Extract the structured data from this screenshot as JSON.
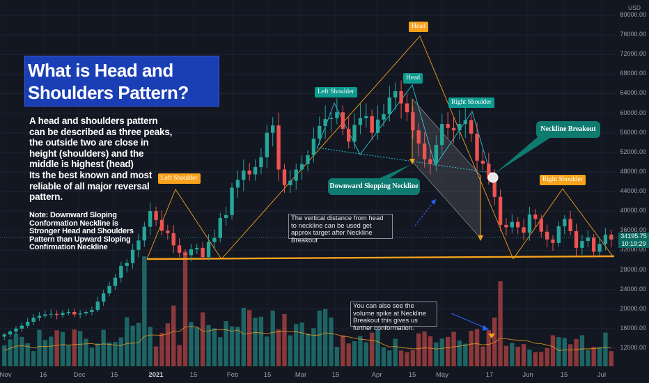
{
  "title": "What is Head and Shoulders Pattern?",
  "description": "A head and shoulders pattern can be described as three peaks, the outside two are close in height (shoulders)  and the middle is highest (head)\nIts the best known and most reliable of all major reversal pattern.",
  "note": "Note: Downward Sloping Conformation Neckline is Stronger Head and Shoulders Pattern than Upward Sloping Confirmation Neckline",
  "callouts": {
    "target": "The vertical distance from head to neckline can be used get approx target after Neckline Breakout",
    "volume": "You can also see the volume spike at Neckline Breakout this gives us further conformation."
  },
  "tags": {
    "head_top": "Head",
    "left_shoulder_small": "Left Shoulder",
    "head_small": "Head",
    "right_shoulder_small": "Right Shoulder",
    "left_shoulder_big": "Left Shoulder",
    "right_shoulder_big": "Right Shoulder",
    "neckline_breakout": "Neckline Breakout",
    "downward_neckline": "Downward Slopping Neckline"
  },
  "price_axis": {
    "currency": "USD",
    "ticks": [
      "80000.00",
      "76000.00",
      "72000.00",
      "68000.00",
      "64000.00",
      "60000.00",
      "56000.00",
      "52000.00",
      "48000.00",
      "44000.00",
      "40000.00",
      "36000.00",
      "32000.00",
      "28000.00",
      "24000.00",
      "20000.00",
      "16000.00",
      "12000.00"
    ],
    "last_price": "34195.75",
    "countdown": "10:19:29"
  },
  "colors": {
    "up": "#26a69a",
    "down": "#ef5350",
    "pattern": "#f7a21b",
    "neckline_small": "#26c6da",
    "background": "#131722"
  },
  "chart_data": {
    "type": "candlestick",
    "symbol_currency": "USD",
    "x_ticks": [
      "Nov",
      "16",
      "Dec",
      "15",
      "2021",
      "15",
      "Feb",
      "15",
      "Mar",
      "15",
      "Apr",
      "15",
      "May",
      "17",
      "Jun",
      "15",
      "Jul"
    ],
    "ylim": [
      8000,
      80000
    ],
    "close_series": [
      14800,
      15400,
      16000,
      16600,
      17400,
      18200,
      18600,
      18900,
      19000,
      18800,
      19200,
      19400,
      18900,
      19100,
      19400,
      19800,
      21500,
      23200,
      24700,
      26400,
      28800,
      29400,
      32100,
      34000,
      36800,
      40000,
      38200,
      36000,
      35500,
      33000,
      31500,
      31000,
      32200,
      32500,
      30600,
      33700,
      34500,
      38600,
      39200,
      44800,
      46400,
      48300,
      47500,
      49000,
      51000,
      56000,
      57500,
      48500,
      45300,
      46200,
      48500,
      49600,
      51400,
      54800,
      57400,
      58800,
      59000,
      60200,
      56800,
      54200,
      57600,
      59000,
      59400,
      56000,
      58700,
      59800,
      63200,
      64500,
      62000,
      60200,
      56500,
      53800,
      50600,
      49700,
      53500,
      57800,
      57000,
      56500,
      57800,
      58600,
      55800,
      50300,
      49700,
      46500,
      42900,
      37200,
      36700,
      37800,
      36700,
      35600,
      39300,
      38400,
      35800,
      34200,
      33500,
      36900,
      38400,
      35900,
      32500,
      33900,
      34600,
      31700,
      33300,
      35200,
      34200
    ],
    "volume_max_at_breakout": true,
    "annotations": [
      "Left Shoulder",
      "Head",
      "Right Shoulder",
      "Downward Slopping Neckline",
      "Neckline Breakout"
    ]
  }
}
